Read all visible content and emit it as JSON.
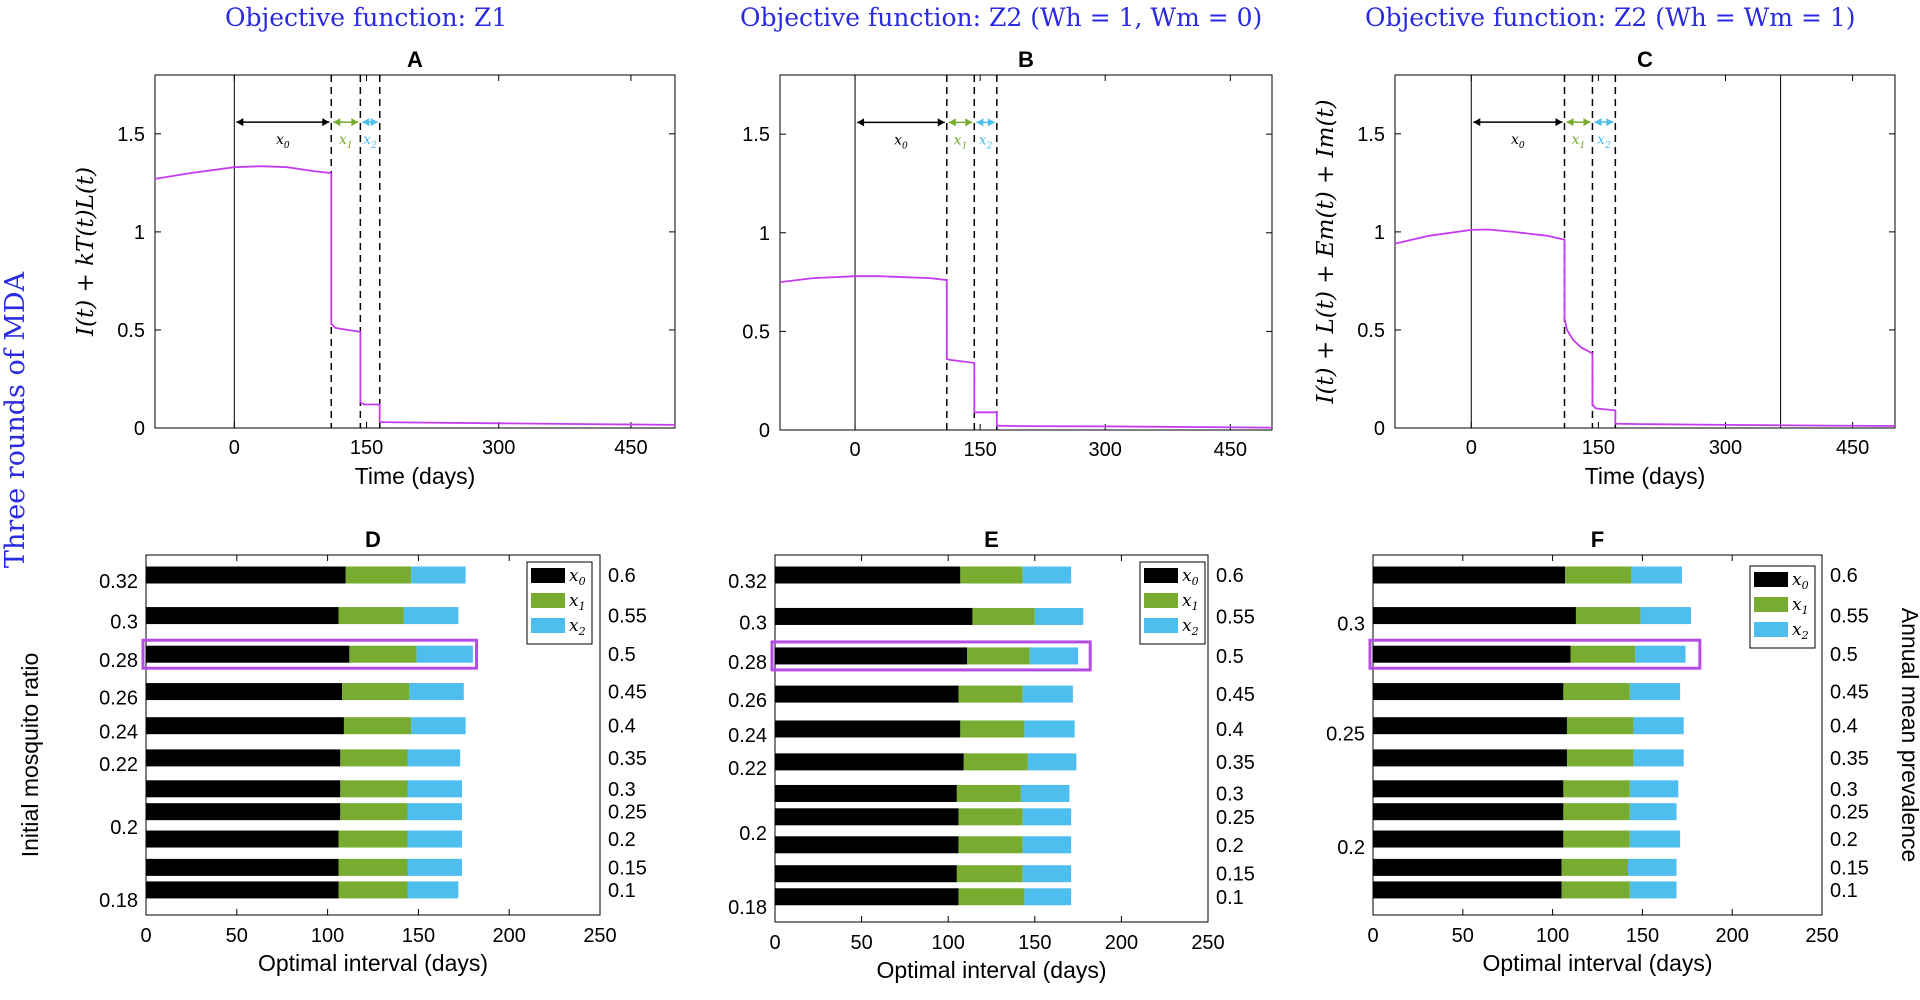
{
  "row_label": "Three rounds of MDA",
  "objectives": [
    "Objective function:  Z",
    "Objective function:  Z",
    "Objective function:  Z"
  ],
  "objective_subs": [
    "1",
    "2",
    "2"
  ],
  "objective_extras": [
    "",
    " (W",
    " (W"
  ],
  "objective_full": [
    "Objective function: Z1",
    "Objective function: Z2 (Wh = 1, Wm = 0)",
    "Objective function: Z2 (Wh = Wm = 1)"
  ],
  "objective_tails": [
    "",
    "h = 1, W",
    "h = W"
  ],
  "objective_tails2": [
    "",
    "m = 0)",
    "m = 1)"
  ],
  "colors": {
    "x0": "#000000",
    "x1": "#77ac30",
    "x2": "#4dbeee",
    "curve": "#c43cf0",
    "highlight": "#b44de8",
    "objective": "#2a2ae0"
  },
  "chart_data": [
    {
      "panel": "A",
      "type": "line",
      "title": "A",
      "xlabel": "Time (days)",
      "ylabel": "I(t) + kT(t)L(t)",
      "xlim": [
        -90,
        500
      ],
      "ylim": [
        0,
        1.8
      ],
      "xticks": [
        "0",
        "150",
        "300",
        "450"
      ],
      "yticks": [
        "0",
        "0.5",
        "1",
        "1.5"
      ],
      "solid_lines": [
        0
      ],
      "dashed_lines": [
        110,
        143,
        165
      ],
      "interval_labels": [
        "x0",
        "x1",
        "x2"
      ],
      "series": [
        {
          "name": "curve",
          "x": [
            -90,
            -50,
            0,
            30,
            60,
            90,
            110,
            110,
            115,
            143,
            143,
            147,
            165,
            165,
            200,
            300,
            400,
            500
          ],
          "y": [
            1.27,
            1.3,
            1.33,
            1.335,
            1.33,
            1.31,
            1.3,
            0.53,
            0.51,
            0.49,
            0.13,
            0.12,
            0.12,
            0.03,
            0.028,
            0.024,
            0.02,
            0.016
          ]
        }
      ]
    },
    {
      "panel": "B",
      "type": "line",
      "title": "B",
      "xlabel": "",
      "ylabel": "",
      "xlim": [
        -90,
        500
      ],
      "ylim": [
        0,
        1.8
      ],
      "xticks": [
        "0",
        "150",
        "300",
        "450"
      ],
      "yticks": [
        "0",
        "0.5",
        "1",
        "1.5"
      ],
      "solid_lines": [
        0
      ],
      "dashed_lines": [
        110,
        143,
        170
      ],
      "interval_labels": [
        "x0",
        "x1",
        "x2"
      ],
      "series": [
        {
          "name": "curve",
          "x": [
            -90,
            -50,
            0,
            30,
            60,
            90,
            110,
            110,
            115,
            143,
            143,
            147,
            170,
            170,
            200,
            300,
            400,
            500
          ],
          "y": [
            0.75,
            0.77,
            0.78,
            0.78,
            0.775,
            0.77,
            0.76,
            0.36,
            0.355,
            0.34,
            0.09,
            0.09,
            0.09,
            0.022,
            0.02,
            0.018,
            0.015,
            0.012
          ]
        }
      ]
    },
    {
      "panel": "C",
      "type": "line",
      "title": "C",
      "xlabel": "Time (days)",
      "ylabel": "I(t) + L(t) + Em(t) + Im(t)",
      "xlim": [
        -90,
        500
      ],
      "ylim": [
        0,
        1.8
      ],
      "xticks": [
        "0",
        "150",
        "300",
        "450"
      ],
      "yticks": [
        "0",
        "0.5",
        "1",
        "1.5"
      ],
      "solid_lines": [
        0,
        365
      ],
      "dashed_lines": [
        110,
        143,
        170
      ],
      "interval_labels": [
        "x0",
        "x1",
        "x2"
      ],
      "series": [
        {
          "name": "curve",
          "x": [
            -90,
            -50,
            0,
            20,
            50,
            90,
            110,
            110,
            113,
            120,
            130,
            143,
            143,
            147,
            170,
            170,
            200,
            300,
            400,
            500
          ],
          "y": [
            0.94,
            0.98,
            1.01,
            1.012,
            1.0,
            0.98,
            0.96,
            0.56,
            0.5,
            0.45,
            0.41,
            0.38,
            0.12,
            0.1,
            0.09,
            0.022,
            0.02,
            0.016,
            0.013,
            0.01
          ]
        }
      ]
    },
    {
      "panel": "D",
      "type": "bar",
      "title": "D",
      "xlabel": "Optimal interval (days)",
      "ylabel": "Initial mosquito ratio",
      "y2label": "",
      "xlim": [
        0,
        250
      ],
      "xticks": [
        "0",
        "50",
        "100",
        "150",
        "200",
        "250"
      ],
      "left_ticks": [
        "0.32",
        "0.3",
        "0.28",
        "0.26",
        "0.24",
        "0.22",
        "0.2",
        "0.18"
      ],
      "right_ticks": [
        "0.6",
        "0.55",
        "0.5",
        "0.45",
        "0.4",
        "0.35",
        "0.3",
        "0.25",
        "0.2",
        "0.15",
        "0.1"
      ],
      "legend": [
        "x0",
        "x1",
        "x2"
      ],
      "highlight_index": 2,
      "categories": [
        "0.6",
        "0.55",
        "0.5",
        "0.45",
        "0.4",
        "0.35",
        "0.3",
        "0.25",
        "0.2",
        "0.15",
        "0.1"
      ],
      "series": [
        {
          "name": "x0",
          "values": [
            110,
            106,
            112,
            108,
            109,
            107,
            107,
            107,
            106,
            106,
            106
          ]
        },
        {
          "name": "x1",
          "values": [
            36,
            36,
            37,
            37,
            37,
            37,
            37,
            37,
            38,
            38,
            38
          ]
        },
        {
          "name": "x2",
          "values": [
            30,
            30,
            31,
            30,
            30,
            29,
            30,
            30,
            30,
            30,
            28
          ]
        }
      ]
    },
    {
      "panel": "E",
      "type": "bar",
      "title": "E",
      "xlabel": "Optimal interval (days)",
      "ylabel": "",
      "y2label": "",
      "xlim": [
        0,
        250
      ],
      "xticks": [
        "0",
        "50",
        "100",
        "150",
        "200",
        "250"
      ],
      "left_ticks": [
        "0.32",
        "0.3",
        "0.28",
        "0.26",
        "0.24",
        "0.22",
        "0.2",
        "0.18"
      ],
      "right_ticks": [
        "0.6",
        "0.55",
        "0.5",
        "0.45",
        "0.4",
        "0.35",
        "0.3",
        "0.25",
        "0.2",
        "0.15",
        "0.1"
      ],
      "legend": [
        "x0",
        "x1",
        "x2"
      ],
      "highlight_index": 2,
      "categories": [
        "0.6",
        "0.55",
        "0.5",
        "0.45",
        "0.4",
        "0.35",
        "0.3",
        "0.25",
        "0.2",
        "0.15",
        "0.1"
      ],
      "series": [
        {
          "name": "x0",
          "values": [
            107,
            114,
            111,
            106,
            107,
            109,
            105,
            106,
            106,
            105,
            106
          ]
        },
        {
          "name": "x1",
          "values": [
            36,
            36,
            36,
            37,
            37,
            37,
            37,
            37,
            37,
            38,
            38
          ]
        },
        {
          "name": "x2",
          "values": [
            28,
            28,
            28,
            29,
            29,
            28,
            28,
            28,
            28,
            28,
            27
          ]
        }
      ]
    },
    {
      "panel": "F",
      "type": "bar",
      "title": "F",
      "xlabel": "Optimal interval (days)",
      "ylabel": "",
      "y2label": "Annual mean prevalence",
      "xlim": [
        0,
        250
      ],
      "xticks": [
        "0",
        "50",
        "100",
        "150",
        "200",
        "250"
      ],
      "left_ticks": [
        "0.3",
        "0.25",
        "0.2"
      ],
      "right_ticks": [
        "0.6",
        "0.55",
        "0.5",
        "0.45",
        "0.4",
        "0.35",
        "0.3",
        "0.25",
        "0.2",
        "0.15",
        "0.1"
      ],
      "legend": [
        "x0",
        "x1",
        "x2"
      ],
      "highlight_index": 2,
      "categories": [
        "0.6",
        "0.55",
        "0.5",
        "0.45",
        "0.4",
        "0.35",
        "0.3",
        "0.25",
        "0.2",
        "0.15",
        "0.1"
      ],
      "series": [
        {
          "name": "x0",
          "values": [
            107,
            113,
            110,
            106,
            108,
            108,
            106,
            106,
            106,
            105,
            105
          ]
        },
        {
          "name": "x1",
          "values": [
            37,
            36,
            36,
            37,
            37,
            37,
            37,
            37,
            37,
            37,
            38
          ]
        },
        {
          "name": "x2",
          "values": [
            28,
            28,
            28,
            28,
            28,
            28,
            27,
            26,
            28,
            27,
            26
          ]
        }
      ]
    }
  ]
}
